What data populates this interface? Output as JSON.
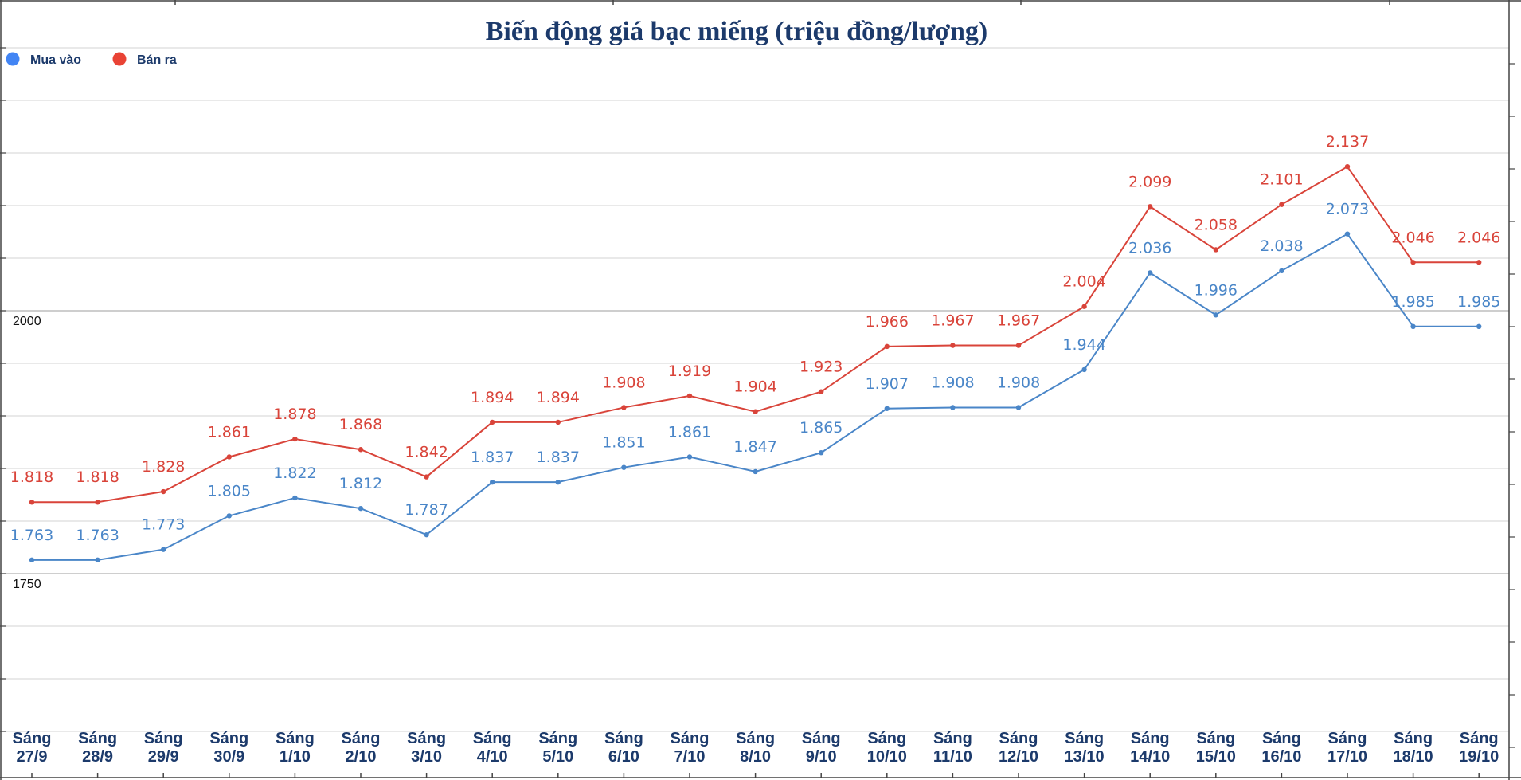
{
  "chart_data": {
    "type": "line",
    "title": "Biến động giá bạc miếng (triệu đồng/lượng)",
    "xlabel": "",
    "ylabel": "",
    "ylim": [
      1600,
      2250
    ],
    "grid": true,
    "legend_position": "top-left",
    "y_ticks": [
      {
        "value": 2000,
        "label": "2000"
      },
      {
        "value": 1750,
        "label": "1750"
      }
    ],
    "categories": [
      [
        "Sáng",
        "27/9"
      ],
      [
        "Sáng",
        "28/9"
      ],
      [
        "Sáng",
        "29/9"
      ],
      [
        "Sáng",
        "30/9"
      ],
      [
        "Sáng",
        "1/10"
      ],
      [
        "Sáng",
        "2/10"
      ],
      [
        "Sáng",
        "3/10"
      ],
      [
        "Sáng",
        "4/10"
      ],
      [
        "Sáng",
        "5/10"
      ],
      [
        "Sáng",
        "6/10"
      ],
      [
        "Sáng",
        "7/10"
      ],
      [
        "Sáng",
        "8/10"
      ],
      [
        "Sáng",
        "9/10"
      ],
      [
        "Sáng",
        "10/10"
      ],
      [
        "Sáng",
        "11/10"
      ],
      [
        "Sáng",
        "12/10"
      ],
      [
        "Sáng",
        "13/10"
      ],
      [
        "Sáng",
        "14/10"
      ],
      [
        "Sáng",
        "15/10"
      ],
      [
        "Sáng",
        "16/10"
      ],
      [
        "Sáng",
        "17/10"
      ],
      [
        "Sáng",
        "18/10"
      ],
      [
        "Sáng",
        "19/10"
      ]
    ],
    "series": [
      {
        "name": "Mua vào",
        "color": "#4a86c8",
        "legend_color": "#4285f4",
        "values": [
          1763,
          1763,
          1773,
          1805,
          1822,
          1812,
          1787,
          1837,
          1837,
          1851,
          1861,
          1847,
          1865,
          1907,
          1908,
          1908,
          1944,
          2036,
          1996,
          2038,
          2073,
          1985,
          1985
        ],
        "labels": [
          "1.763",
          "1.763",
          "1.773",
          "1.805",
          "1.822",
          "1.812",
          "1.787",
          "1.837",
          "1.837",
          "1.851",
          "1.861",
          "1.847",
          "1.865",
          "1.907",
          "1.908",
          "1.908",
          "1.944",
          "2.036",
          "1.996",
          "2.038",
          "2.073",
          "1.985",
          "1.985"
        ]
      },
      {
        "name": "Bán ra",
        "color": "#d9443a",
        "legend_color": "#e94335",
        "values": [
          1818,
          1818,
          1828,
          1861,
          1878,
          1868,
          1842,
          1894,
          1894,
          1908,
          1919,
          1904,
          1923,
          1966,
          1967,
          1967,
          2004,
          2099,
          2058,
          2101,
          2137,
          2046,
          2046
        ],
        "labels": [
          "1.818",
          "1.818",
          "1.828",
          "1.861",
          "1.878",
          "1.868",
          "1.842",
          "1.894",
          "1.894",
          "1.908",
          "1.919",
          "1.904",
          "1.923",
          "1.966",
          "1.967",
          "1.967",
          "2.004",
          "2.099",
          "2.058",
          "2.101",
          "2.137",
          "2.046",
          "2.046"
        ]
      }
    ]
  }
}
